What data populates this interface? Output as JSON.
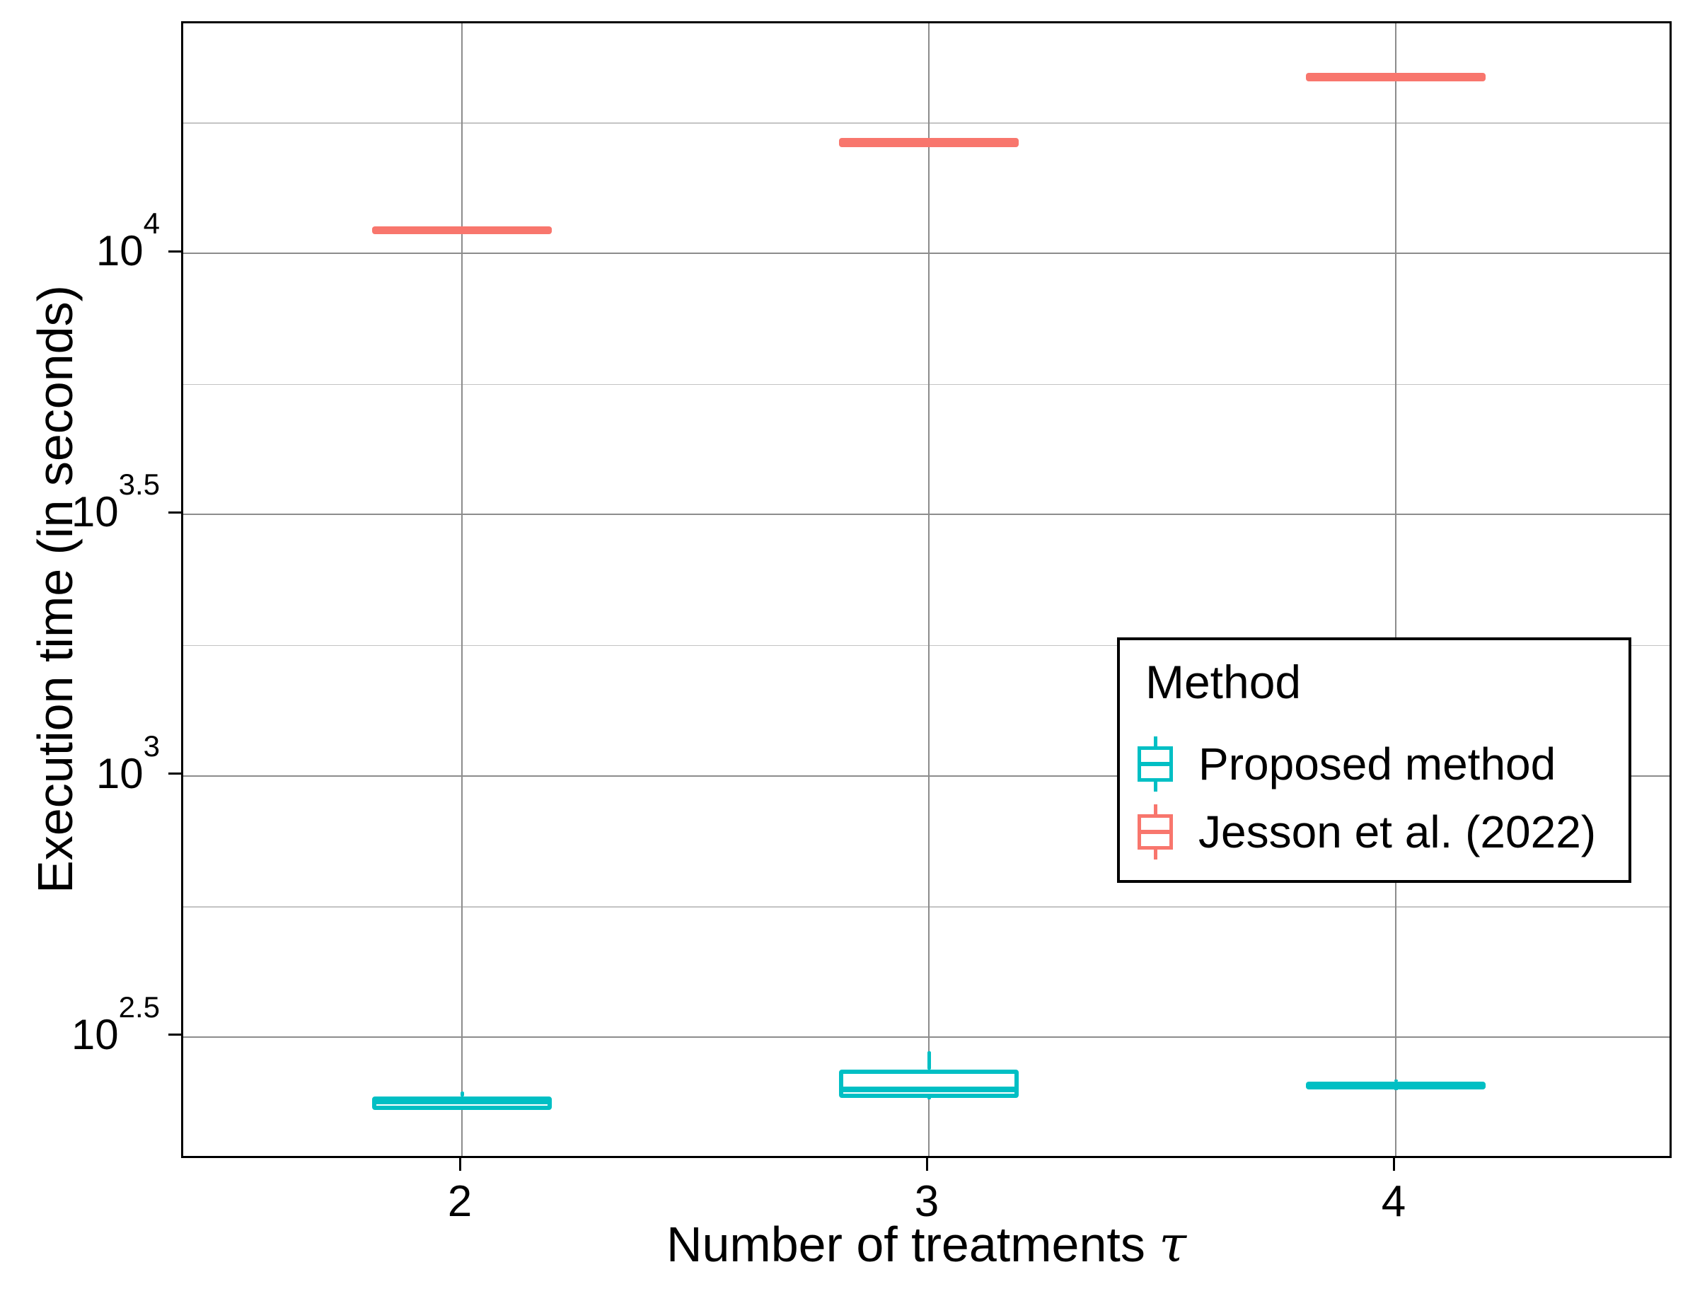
{
  "figure": {
    "background": "#ffffff",
    "panel_border_color": "#000000",
    "grid_major_color": "#8c8c8c",
    "grid_minor_color": "#c4c4c4"
  },
  "chart_data": {
    "type": "boxplot",
    "title": "",
    "xlabel_main": "Number of treatments",
    "xlabel_symbol": "τ",
    "ylabel": "Execution time (in seconds)",
    "x_categories": [
      "2",
      "3",
      "4"
    ],
    "y_scale": "log10",
    "ylim_log10": [
      2.264,
      4.44
    ],
    "y_major_tick_exponents": [
      "2.5",
      "3",
      "3.5",
      "4"
    ],
    "y_tick_base": "10",
    "y_minor_gridline_exponents": [
      2.75,
      3.25,
      3.75,
      4.25
    ],
    "grid": "on",
    "legend_position": "inside-right",
    "series": [
      {
        "name": "Proposed method",
        "color": "#00BFC4",
        "boxes": [
          {
            "category": "2",
            "whisker_low": 229,
            "q1": 229,
            "median": 238,
            "q3": 243,
            "whisker_high": 249
          },
          {
            "category": "3",
            "whisker_low": 240,
            "q1": 242,
            "median": 251,
            "q3": 274,
            "whisker_high": 297
          },
          {
            "category": "4",
            "whisker_low": 250,
            "q1": 251,
            "median": 255,
            "q3": 260,
            "whisker_high": 262
          }
        ]
      },
      {
        "name": "Jesson et al. (2022)",
        "color": "#F8766D",
        "boxes": [
          {
            "category": "2",
            "whisker_low": 10880,
            "q1": 10880,
            "median": 11070,
            "q3": 11260,
            "whisker_high": 11260
          },
          {
            "category": "3",
            "whisker_low": 15960,
            "q1": 15960,
            "median": 16290,
            "q3": 16620,
            "whisker_high": 16620
          },
          {
            "category": "4",
            "whisker_low": 21330,
            "q1": 21330,
            "median": 21730,
            "q3": 22140,
            "whisker_high": 22140
          }
        ]
      }
    ],
    "legend": {
      "title": "Method",
      "entries": [
        "Proposed method",
        "Jesson et al. (2022)"
      ]
    }
  }
}
